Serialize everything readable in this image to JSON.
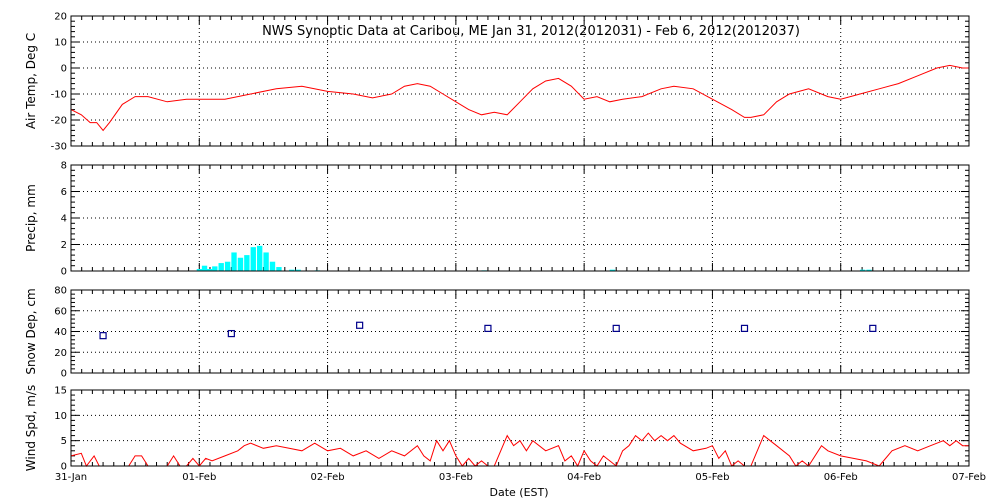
{
  "chart_data": {
    "title": "NWS Synoptic Data at Caribou, ME   Jan 31, 2012(2012031) - Feb  6, 2012(2012037)",
    "xlabel": "Date (EST)",
    "x_tick_labels": [
      "31-Jan",
      "01-Feb",
      "02-Feb",
      "03-Feb",
      "04-Feb",
      "05-Feb",
      "06-Feb",
      "07-Feb"
    ],
    "x_range_days": [
      0,
      7
    ],
    "grid": true,
    "colors": {
      "line": "#ff0000",
      "bar": "#00ffff",
      "marker": "#00008b",
      "grid": "#000000"
    },
    "panels": [
      {
        "id": "air-temp",
        "type": "line",
        "ylabel": "Air Temp, Deg C",
        "ylim": [
          -30,
          20
        ],
        "yticks": [
          -30,
          -20,
          -10,
          0,
          10,
          20
        ],
        "series": [
          {
            "points": [
              [
                0.0,
                -16
              ],
              [
                0.08,
                -18
              ],
              [
                0.15,
                -21
              ],
              [
                0.2,
                -21
              ],
              [
                0.25,
                -24
              ],
              [
                0.3,
                -21
              ],
              [
                0.4,
                -14
              ],
              [
                0.5,
                -11
              ],
              [
                0.6,
                -11
              ],
              [
                0.75,
                -13
              ],
              [
                0.9,
                -12
              ],
              [
                1.0,
                -12
              ],
              [
                1.2,
                -12
              ],
              [
                1.4,
                -10
              ],
              [
                1.6,
                -8
              ],
              [
                1.8,
                -7
              ],
              [
                2.0,
                -9
              ],
              [
                2.2,
                -10
              ],
              [
                2.35,
                -11.5
              ],
              [
                2.5,
                -10
              ],
              [
                2.6,
                -7
              ],
              [
                2.7,
                -6
              ],
              [
                2.8,
                -7
              ],
              [
                2.9,
                -10
              ],
              [
                3.0,
                -13
              ],
              [
                3.1,
                -16
              ],
              [
                3.2,
                -18
              ],
              [
                3.3,
                -17
              ],
              [
                3.4,
                -18
              ],
              [
                3.5,
                -13
              ],
              [
                3.6,
                -8
              ],
              [
                3.7,
                -5
              ],
              [
                3.8,
                -4
              ],
              [
                3.9,
                -7
              ],
              [
                4.0,
                -12
              ],
              [
                4.1,
                -11
              ],
              [
                4.2,
                -13
              ],
              [
                4.3,
                -12
              ],
              [
                4.45,
                -11
              ],
              [
                4.6,
                -8
              ],
              [
                4.7,
                -7
              ],
              [
                4.85,
                -8
              ],
              [
                5.0,
                -12
              ],
              [
                5.15,
                -16
              ],
              [
                5.25,
                -19
              ],
              [
                5.3,
                -19
              ],
              [
                5.4,
                -18
              ],
              [
                5.5,
                -13
              ],
              [
                5.6,
                -10
              ],
              [
                5.75,
                -8
              ],
              [
                5.9,
                -11
              ],
              [
                6.0,
                -12
              ],
              [
                6.15,
                -10
              ],
              [
                6.3,
                -8
              ],
              [
                6.45,
                -6
              ],
              [
                6.6,
                -3
              ],
              [
                6.75,
                0
              ],
              [
                6.85,
                1
              ],
              [
                6.95,
                0
              ],
              [
                7.0,
                0
              ]
            ]
          }
        ]
      },
      {
        "id": "precip",
        "type": "bar",
        "ylabel": "Precip, mm",
        "ylim": [
          0,
          8
        ],
        "yticks": [
          0,
          2,
          4,
          6,
          8
        ],
        "bin_width_days": 0.0417,
        "bars": [
          [
            0.98,
            0.15
          ],
          [
            1.02,
            0.4
          ],
          [
            1.06,
            0.15
          ],
          [
            1.1,
            0.35
          ],
          [
            1.15,
            0.6
          ],
          [
            1.2,
            0.7
          ],
          [
            1.25,
            1.4
          ],
          [
            1.3,
            1.0
          ],
          [
            1.35,
            1.2
          ],
          [
            1.4,
            1.8
          ],
          [
            1.45,
            1.9
          ],
          [
            1.5,
            1.4
          ],
          [
            1.55,
            0.7
          ],
          [
            1.6,
            0.3
          ],
          [
            1.7,
            0.1
          ],
          [
            1.75,
            0.1
          ],
          [
            1.9,
            0.05
          ],
          [
            3.2,
            0.05
          ],
          [
            4.2,
            0.1
          ],
          [
            6.15,
            0.1
          ],
          [
            6.2,
            0.1
          ]
        ]
      },
      {
        "id": "snow-depth",
        "type": "scatter",
        "ylabel": "Snow Dep, cm",
        "ylim": [
          0,
          80
        ],
        "yticks": [
          0,
          20,
          40,
          60,
          80
        ],
        "points": [
          [
            0.25,
            36
          ],
          [
            1.25,
            38
          ],
          [
            2.25,
            46
          ],
          [
            3.25,
            43
          ],
          [
            4.25,
            43
          ],
          [
            5.25,
            43
          ],
          [
            6.25,
            43
          ]
        ]
      },
      {
        "id": "wind-speed",
        "type": "line",
        "ylabel": "Wind Spd, m/s",
        "ylim": [
          0,
          15
        ],
        "yticks": [
          0,
          5,
          10,
          15
        ],
        "series": [
          {
            "points": [
              [
                0.0,
                2
              ],
              [
                0.08,
                2.5
              ],
              [
                0.12,
                0
              ],
              [
                0.18,
                2
              ],
              [
                0.22,
                0
              ],
              [
                0.45,
                0
              ],
              [
                0.5,
                2
              ],
              [
                0.55,
                2
              ],
              [
                0.6,
                0
              ],
              [
                0.75,
                0
              ],
              [
                0.8,
                2
              ],
              [
                0.85,
                0
              ],
              [
                0.9,
                0
              ],
              [
                0.95,
                1.5
              ],
              [
                1.0,
                0
              ],
              [
                1.05,
                1.5
              ],
              [
                1.1,
                1
              ],
              [
                1.2,
                2
              ],
              [
                1.3,
                3
              ],
              [
                1.35,
                4
              ],
              [
                1.4,
                4.5
              ],
              [
                1.5,
                3.5
              ],
              [
                1.6,
                4
              ],
              [
                1.7,
                3.5
              ],
              [
                1.8,
                3
              ],
              [
                1.9,
                4.5
              ],
              [
                2.0,
                3
              ],
              [
                2.1,
                3.5
              ],
              [
                2.2,
                2
              ],
              [
                2.3,
                3
              ],
              [
                2.4,
                1.5
              ],
              [
                2.5,
                3
              ],
              [
                2.6,
                2
              ],
              [
                2.7,
                4
              ],
              [
                2.75,
                2
              ],
              [
                2.8,
                1
              ],
              [
                2.85,
                5
              ],
              [
                2.9,
                3
              ],
              [
                2.95,
                5
              ],
              [
                3.0,
                2
              ],
              [
                3.05,
                0
              ],
              [
                3.1,
                1.5
              ],
              [
                3.15,
                0
              ],
              [
                3.2,
                1
              ],
              [
                3.25,
                0
              ],
              [
                3.3,
                0
              ],
              [
                3.4,
                6
              ],
              [
                3.45,
                4
              ],
              [
                3.5,
                5
              ],
              [
                3.55,
                3
              ],
              [
                3.6,
                5
              ],
              [
                3.7,
                3
              ],
              [
                3.8,
                4
              ],
              [
                3.85,
                1
              ],
              [
                3.9,
                2
              ],
              [
                3.95,
                0
              ],
              [
                4.0,
                3
              ],
              [
                4.05,
                1
              ],
              [
                4.1,
                0
              ],
              [
                4.15,
                2
              ],
              [
                4.2,
                1
              ],
              [
                4.25,
                0
              ],
              [
                4.3,
                3
              ],
              [
                4.35,
                4
              ],
              [
                4.4,
                6
              ],
              [
                4.45,
                5
              ],
              [
                4.5,
                6.5
              ],
              [
                4.55,
                5
              ],
              [
                4.6,
                6
              ],
              [
                4.65,
                5
              ],
              [
                4.7,
                6
              ],
              [
                4.75,
                4.5
              ],
              [
                4.85,
                3
              ],
              [
                4.95,
                3.5
              ],
              [
                5.0,
                4
              ],
              [
                5.05,
                1.5
              ],
              [
                5.1,
                3
              ],
              [
                5.15,
                0
              ],
              [
                5.2,
                1
              ],
              [
                5.25,
                0
              ],
              [
                5.3,
                0
              ],
              [
                5.4,
                6
              ],
              [
                5.45,
                5
              ],
              [
                5.5,
                4
              ],
              [
                5.6,
                2
              ],
              [
                5.65,
                0
              ],
              [
                5.7,
                1
              ],
              [
                5.75,
                0
              ],
              [
                5.85,
                4
              ],
              [
                5.9,
                3
              ],
              [
                6.0,
                2
              ],
              [
                6.1,
                1.5
              ],
              [
                6.2,
                1
              ],
              [
                6.3,
                0
              ],
              [
                6.4,
                3
              ],
              [
                6.5,
                4
              ],
              [
                6.6,
                3
              ],
              [
                6.7,
                4
              ],
              [
                6.8,
                5
              ],
              [
                6.85,
                4
              ],
              [
                6.9,
                5
              ],
              [
                6.95,
                4
              ],
              [
                7.0,
                4
              ]
            ]
          }
        ]
      }
    ]
  }
}
